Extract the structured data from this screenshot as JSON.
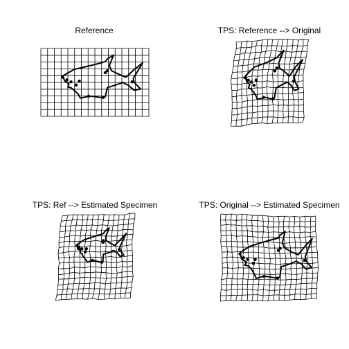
{
  "panels": [
    {
      "id": "ref",
      "title": "Reference"
    },
    {
      "id": "orig",
      "title": "TPS: Reference --> Original"
    },
    {
      "id": "refEst",
      "title": "TPS: Ref --> Estimated Specimen"
    },
    {
      "id": "origEst",
      "title": "TPS: Original --> Estimated Specimen"
    }
  ],
  "colors": {
    "grid": "#000000",
    "outline": "#000000",
    "landmark": "#000000",
    "background": "#ffffff"
  }
}
